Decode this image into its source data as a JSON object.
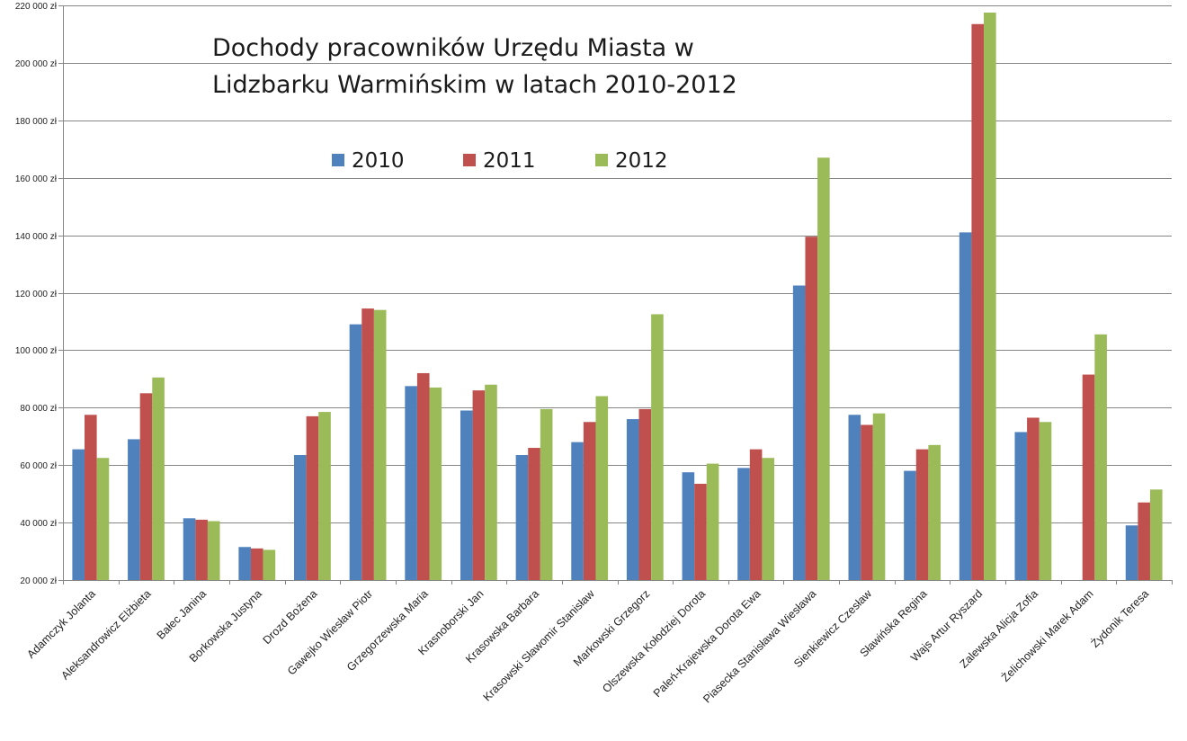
{
  "chart_data": {
    "type": "bar",
    "title_lines": [
      "Dochody  pracowników Urzędu Miasta w",
      "Lidzbarku Warmińskim w latach 2010-2012"
    ],
    "xlabel": "",
    "ylabel": "",
    "ylim": [
      20000,
      220000
    ],
    "ytick_values": [
      20000,
      40000,
      60000,
      80000,
      100000,
      120000,
      140000,
      160000,
      180000,
      200000,
      220000
    ],
    "ytick_labels": [
      "20 000 zł",
      "40 000 zł",
      "60 000 zł",
      "80 000 zł",
      "100 000 zł",
      "120 000 zł",
      "140 000 zł",
      "160 000 zł",
      "180 000 zł",
      "200 000 zł",
      "220 000 zł"
    ],
    "grid": true,
    "legend_position": "top-center",
    "categories": [
      "Adamczyk Jolanta",
      "Aleksandrowicz Elżbieta",
      "Bałec Janina",
      "Borkowska Justyna",
      "Drozd Bożena",
      "Gawejko Wiesław Piotr",
      "Grzegorzewska Maria",
      "Krasnoborski Jan",
      "Krasowska Barbara",
      "Krasowski Sławomir Stanisław",
      "Markowski Grzegorz",
      "Olszewska Kołodziej Dorota",
      "Paleń-Krajewska Dorota Ewa",
      "Piasecka Stanisława Wiesława",
      "Sienkiewicz Czesław",
      "Sławińska Regina",
      "Wajs Artur Ryszard",
      "Zalewska Alicja Zofia",
      "Żelichowski Marek Adam",
      "Żydonik Teresa"
    ],
    "series": [
      {
        "name": "2010",
        "color": "#4f81bd",
        "values": [
          65500,
          69000,
          41500,
          31500,
          63500,
          109000,
          87500,
          79000,
          63500,
          68000,
          76000,
          57500,
          59000,
          122500,
          77500,
          58000,
          141000,
          71500,
          null,
          39000
        ]
      },
      {
        "name": "2011",
        "color": "#c0504d",
        "values": [
          77500,
          85000,
          41000,
          31000,
          77000,
          114500,
          92000,
          86000,
          66000,
          75000,
          79500,
          53500,
          65500,
          139500,
          74000,
          65500,
          213500,
          76500,
          91500,
          47000
        ]
      },
      {
        "name": "2012",
        "color": "#9bbb59",
        "values": [
          62500,
          90500,
          40500,
          30500,
          78500,
          114000,
          87000,
          88000,
          79500,
          84000,
          112500,
          60500,
          62500,
          167000,
          78000,
          67000,
          217500,
          75000,
          105500,
          51500
        ]
      }
    ]
  }
}
